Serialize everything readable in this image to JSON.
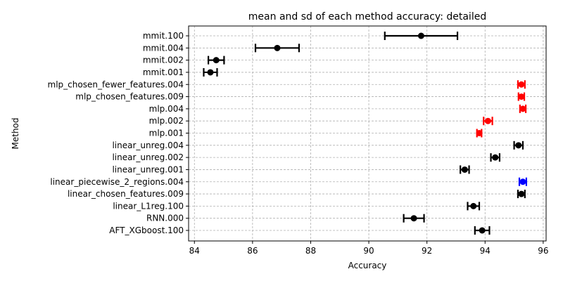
{
  "chart_data": {
    "type": "errorbar",
    "title": "mean and sd of each method accuracy: detailed",
    "xlabel": "Accuracy",
    "ylabel": "Method",
    "xlim": [
      83.8,
      96.1
    ],
    "xticks": [
      84,
      86,
      88,
      90,
      92,
      94,
      96
    ],
    "grid": true,
    "methods": [
      {
        "label": "mmit.100",
        "mean": 91.8,
        "sd": 1.25,
        "color": "#000000"
      },
      {
        "label": "mmit.004",
        "mean": 86.85,
        "sd": 0.75,
        "color": "#000000"
      },
      {
        "label": "mmit.002",
        "mean": 84.75,
        "sd": 0.27,
        "color": "#000000"
      },
      {
        "label": "mmit.001",
        "mean": 84.55,
        "sd": 0.23,
        "color": "#000000"
      },
      {
        "label": "mlp_chosen_fewer_features.004",
        "mean": 95.25,
        "sd": 0.12,
        "color": "#ff0000"
      },
      {
        "label": "mlp_chosen_features.009",
        "mean": 95.25,
        "sd": 0.1,
        "color": "#ff0000"
      },
      {
        "label": "mlp.004",
        "mean": 95.3,
        "sd": 0.1,
        "color": "#ff0000"
      },
      {
        "label": "mlp.002",
        "mean": 94.1,
        "sd": 0.15,
        "color": "#ff0000"
      },
      {
        "label": "mlp.001",
        "mean": 93.8,
        "sd": 0.08,
        "color": "#ff0000"
      },
      {
        "label": "linear_unreg.004",
        "mean": 95.15,
        "sd": 0.15,
        "color": "#000000"
      },
      {
        "label": "linear_unreg.002",
        "mean": 94.35,
        "sd": 0.15,
        "color": "#000000"
      },
      {
        "label": "linear_unreg.001",
        "mean": 93.3,
        "sd": 0.15,
        "color": "#000000"
      },
      {
        "label": "linear_piecewise_2_regions.004",
        "mean": 95.3,
        "sd": 0.12,
        "color": "#0000ff"
      },
      {
        "label": "linear_chosen_features.009",
        "mean": 95.25,
        "sd": 0.12,
        "color": "#000000"
      },
      {
        "label": "linear_L1reg.100",
        "mean": 93.6,
        "sd": 0.2,
        "color": "#000000"
      },
      {
        "label": "RNN.000",
        "mean": 91.55,
        "sd": 0.35,
        "color": "#000000"
      },
      {
        "label": "AFT_XGboost.100",
        "mean": 93.9,
        "sd": 0.25,
        "color": "#000000"
      }
    ]
  }
}
